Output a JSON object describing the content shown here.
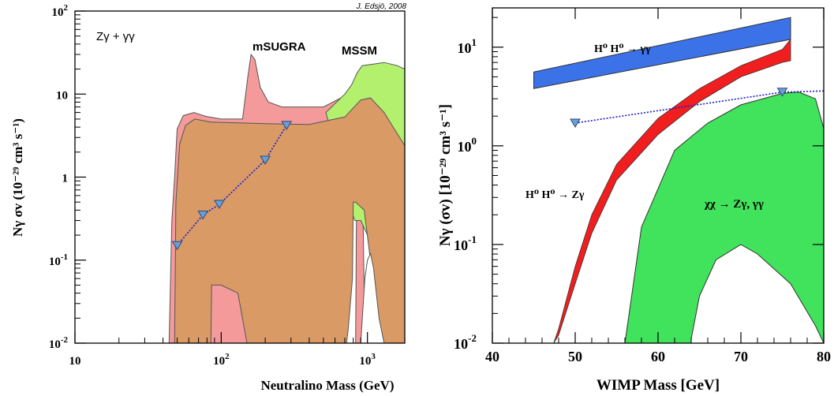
{
  "chart_data": [
    {
      "type": "area",
      "credit": "J. Edsjö, 2008",
      "process_label": "Zγ + γγ",
      "xlabel": "Neutralino Mass (GeV)",
      "ylabel": "Nγ σv (10⁻²⁹ cm³ s⁻¹)",
      "xscale": "log",
      "yscale": "log",
      "xlim": [
        10,
        1800
      ],
      "ylim": [
        0.01,
        100
      ],
      "xticks": [
        {
          "v": 10,
          "b": "10",
          "e": ""
        },
        {
          "v": 100,
          "b": "10",
          "e": "2"
        },
        {
          "v": 1000,
          "b": "10",
          "e": "3"
        }
      ],
      "yticks": [
        {
          "v": 0.01,
          "b": "10",
          "e": "-2"
        },
        {
          "v": 0.1,
          "b": "10",
          "e": "-1"
        },
        {
          "v": 1,
          "b": "1",
          "e": ""
        },
        {
          "v": 10,
          "b": "10",
          "e": ""
        },
        {
          "v": 100,
          "b": "10",
          "e": "2"
        }
      ],
      "regions": [
        {
          "name": "mSUGRA",
          "color": "#f59a9a",
          "label_color": "#d65c5c",
          "label_pos": [
            240,
            40
          ]
        },
        {
          "name": "MSSM",
          "color": "#b3f06e",
          "label_color": "#44c11a",
          "label_pos": [
            900,
            45
          ]
        },
        {
          "name": "overlap",
          "color": "#d99a66"
        }
      ],
      "series": [
        {
          "name": "benchmark",
          "x": [
            50,
            75,
            97,
            200,
            280
          ],
          "y": [
            0.15,
            0.35,
            0.47,
            1.6,
            4.2
          ]
        }
      ]
    },
    {
      "type": "area",
      "xlabel": "WIMP Mass [GeV]",
      "ylabel": "Nγ (σv) [10⁻²⁹ cm³ s⁻¹]",
      "xscale": "linear",
      "yscale": "log",
      "xlim": [
        40,
        80
      ],
      "ylim": [
        0.01,
        25
      ],
      "xticks": [
        40,
        50,
        60,
        70,
        80
      ],
      "yticks": [
        {
          "v": 0.01,
          "b": "10",
          "e": "-2"
        },
        {
          "v": 0.1,
          "b": "10",
          "e": "-1"
        },
        {
          "v": 1,
          "b": "10",
          "e": "0"
        },
        {
          "v": 10,
          "b": "10",
          "e": "1"
        }
      ],
      "bands": [
        {
          "name": "H⁰ H⁰ → γγ",
          "color": "#3b72e8",
          "label_color": "#2040d8",
          "x": [
            45,
            76
          ],
          "lower": [
            3.8,
            12
          ],
          "upper": [
            5.6,
            20
          ]
        },
        {
          "name": "H⁰ H⁰ → Zγ",
          "color": "#f01e1e",
          "label_color": "#ee1111",
          "x": [
            47.4,
            48,
            50,
            52,
            55,
            60,
            65,
            70,
            75,
            76
          ],
          "lower": [
            0.01,
            0.012,
            0.04,
            0.13,
            0.45,
            1.3,
            2.8,
            5,
            7,
            7.3
          ],
          "upper": [
            0.01,
            0.014,
            0.06,
            0.2,
            0.65,
            1.9,
            3.8,
            6.5,
            9.5,
            12
          ]
        },
        {
          "name": "χχ → Zγ, γγ",
          "color": "#40e35b",
          "label_color": "#000000",
          "x": [
            56,
            58,
            62,
            66,
            70,
            75,
            77,
            79,
            80,
            80,
            79,
            76,
            72,
            70,
            67,
            65,
            64,
            64
          ],
          "y": [
            0.01,
            0.15,
            0.9,
            1.7,
            2.6,
            3.4,
            3.5,
            3,
            1.5,
            0.01,
            0.015,
            0.04,
            0.08,
            0.1,
            0.07,
            0.03,
            0.011,
            0.01
          ]
        }
      ],
      "series": [
        {
          "name": "benchmark",
          "x": [
            50,
            75
          ],
          "y": [
            1.7,
            3.5
          ],
          "extend_to": 80,
          "extend_y": 3.6
        }
      ]
    }
  ]
}
